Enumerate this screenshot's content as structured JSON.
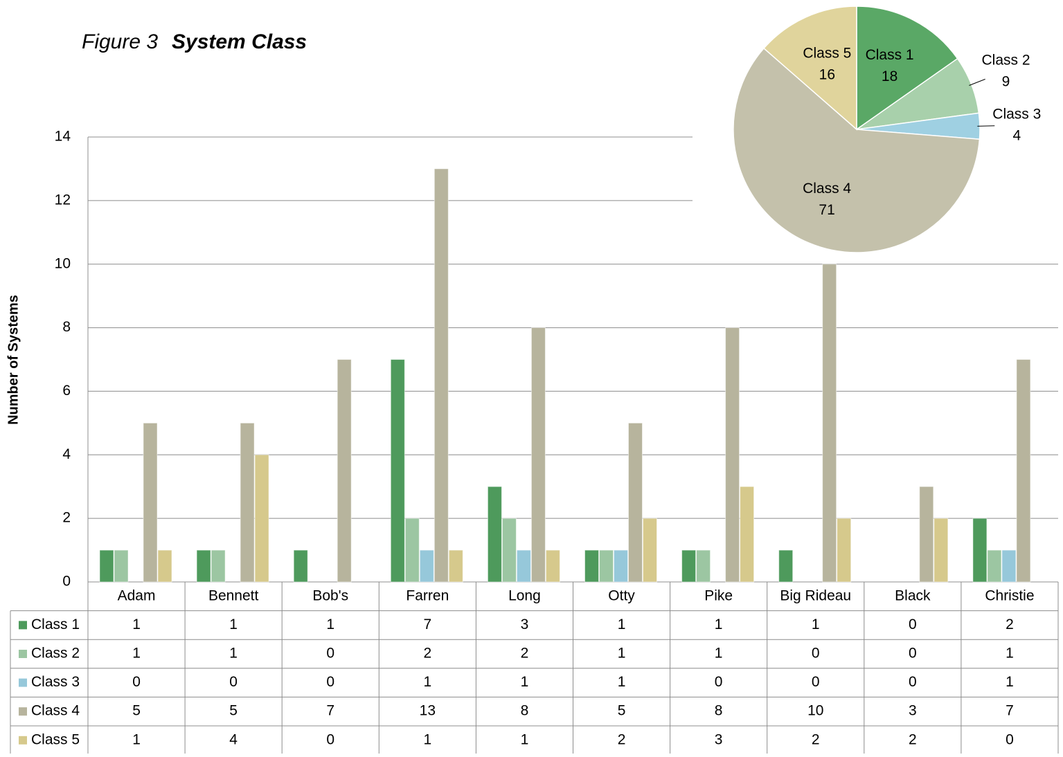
{
  "chart_data": [
    {
      "type": "bar",
      "figure_label": "Figure 3",
      "title": "System Class",
      "y_label": "Number of Systems",
      "categories": [
        "Adam",
        "Bennett",
        "Bob's",
        "Farren",
        "Long",
        "Otty",
        "Pike",
        "Big Rideau",
        "Black",
        "Christie"
      ],
      "series": [
        {
          "name": "Class 1",
          "color": "#4e9a5c",
          "values": [
            1,
            1,
            1,
            7,
            3,
            1,
            1,
            1,
            0,
            2
          ]
        },
        {
          "name": "Class 2",
          "color": "#9cc6a2",
          "values": [
            1,
            1,
            0,
            2,
            2,
            1,
            1,
            0,
            0,
            1
          ]
        },
        {
          "name": "Class 3",
          "color": "#96c8da",
          "values": [
            0,
            0,
            0,
            1,
            1,
            1,
            0,
            0,
            0,
            1
          ]
        },
        {
          "name": "Class 4",
          "color": "#b7b49d",
          "values": [
            5,
            5,
            7,
            13,
            8,
            5,
            8,
            10,
            3,
            7
          ]
        },
        {
          "name": "Class 5",
          "color": "#d6c98c",
          "values": [
            1,
            4,
            0,
            1,
            1,
            2,
            3,
            2,
            2,
            0
          ]
        }
      ],
      "ylim": [
        0,
        14
      ],
      "yticks": [
        0,
        2,
        4,
        6,
        8,
        10,
        12,
        14
      ],
      "grid": true
    },
    {
      "type": "pie",
      "categories": [
        "Class 1",
        "Class 2",
        "Class 3",
        "Class 4",
        "Class 5"
      ],
      "values": [
        18,
        9,
        4,
        71,
        16
      ],
      "colors": [
        "#5aa866",
        "#a8d0ab",
        "#9fd0e2",
        "#c4c1ab",
        "#e0d49c"
      ]
    }
  ]
}
